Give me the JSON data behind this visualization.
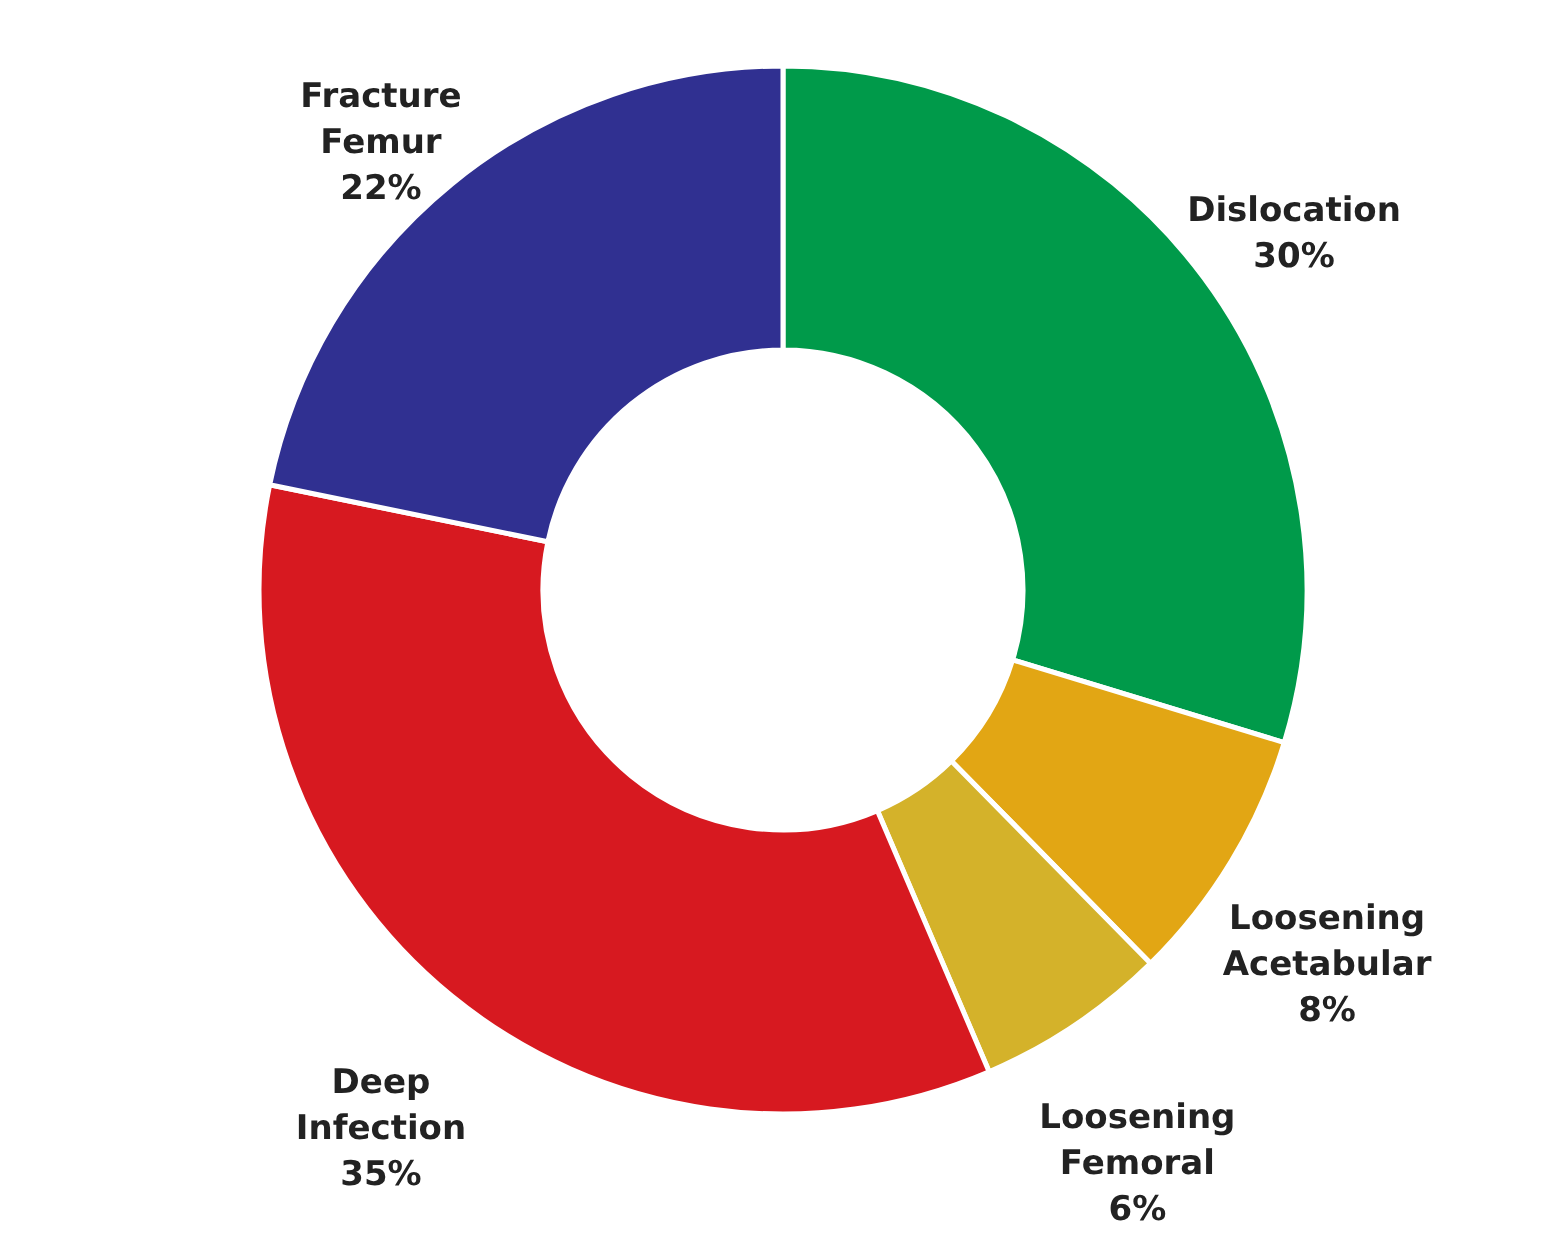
{
  "chart_data": {
    "type": "donut",
    "categories": [
      "Dislocation",
      "Loosening Acetabular",
      "Loosening Femoral",
      "Deep Infection",
      "Fracture Femur"
    ],
    "values": [
      30,
      8,
      6,
      35,
      22
    ],
    "value_labels": [
      "30%",
      "8%",
      "6%",
      "35%",
      "22%"
    ],
    "colors": [
      "#009a4a",
      "#e2a614",
      "#d4b22a",
      "#d71920",
      "#303091"
    ]
  }
}
